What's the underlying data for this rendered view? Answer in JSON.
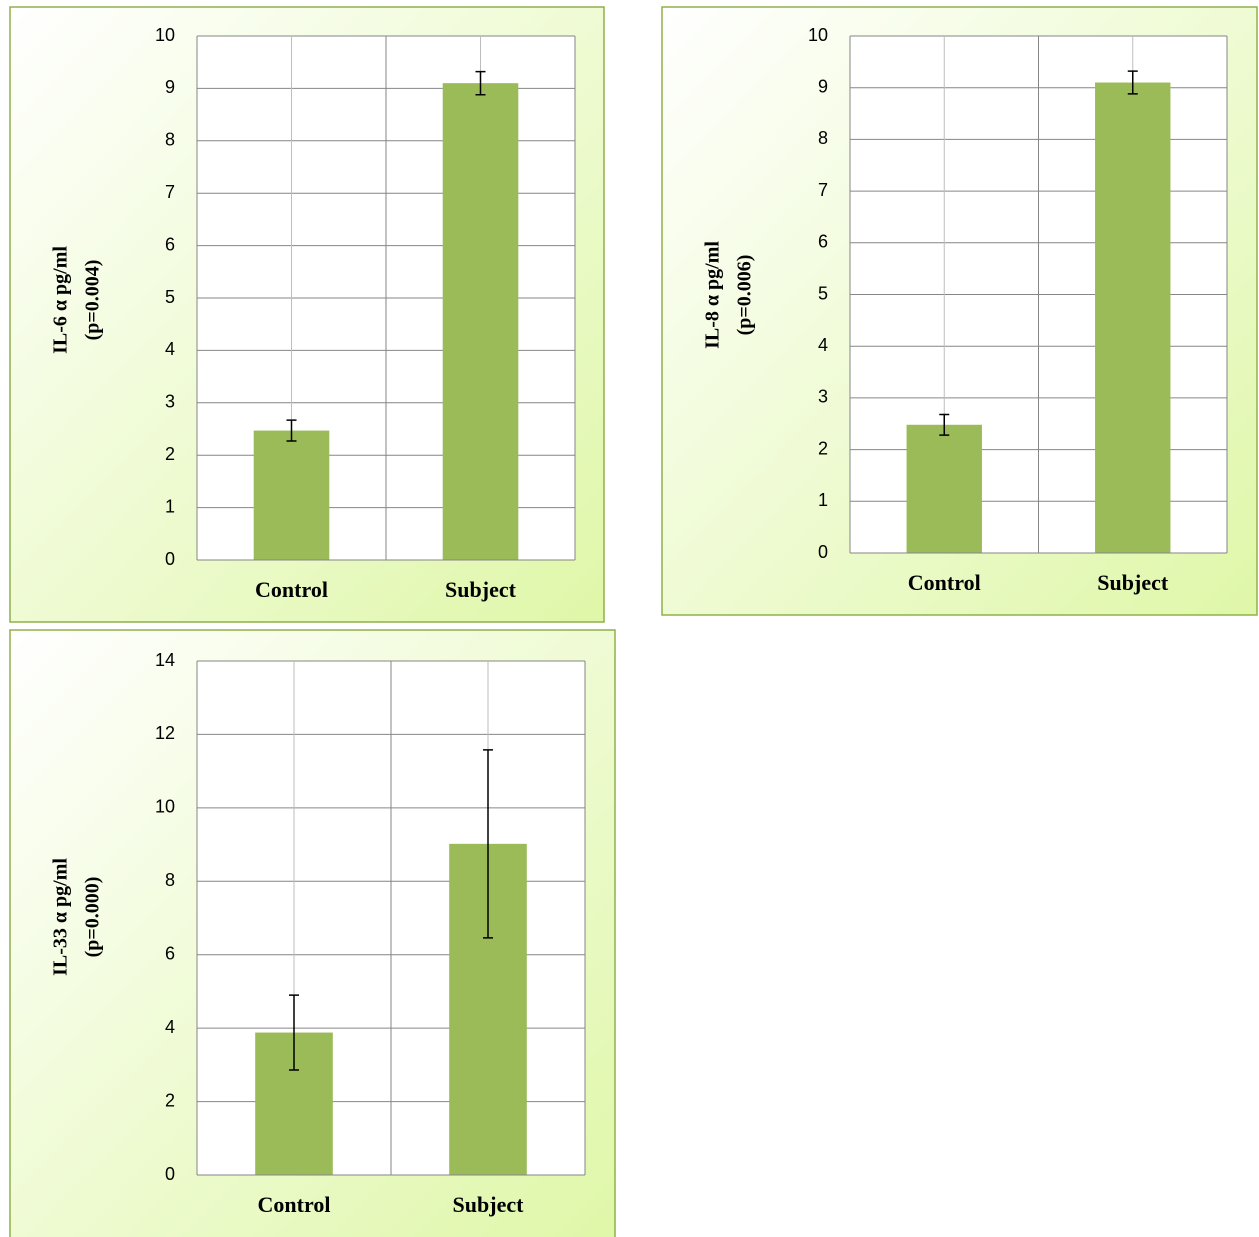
{
  "chart_data": [
    {
      "type": "bar",
      "y_label": [
        "IL-6 α pg/ml",
        "(p=0.004)"
      ],
      "categories": [
        "Control",
        "Subject"
      ],
      "values": [
        2.47,
        9.1
      ],
      "errors": [
        0.2,
        0.22
      ],
      "color": "#9bbb59",
      "ylim": [
        0,
        10
      ],
      "yticks": [
        0,
        1,
        2,
        3,
        4,
        5,
        6,
        7,
        8,
        9,
        10
      ],
      "grid": true
    },
    {
      "type": "bar",
      "y_label": [
        "IL-8 α pg/ml",
        "(p=0.006)"
      ],
      "categories": [
        "Control",
        "Subject"
      ],
      "values": [
        2.48,
        9.1
      ],
      "errors": [
        0.2,
        0.22
      ],
      "color": "#9bbb59",
      "ylim": [
        0,
        10
      ],
      "yticks": [
        0,
        1,
        2,
        3,
        4,
        5,
        6,
        7,
        8,
        9,
        10
      ],
      "grid": true
    },
    {
      "type": "bar",
      "y_label": [
        "IL-33 α pg/ml",
        "(p=0.000)"
      ],
      "categories": [
        "Control",
        "Subject"
      ],
      "values": [
        3.88,
        9.02
      ],
      "errors": [
        1.02,
        2.56
      ],
      "color": "#9bbb59",
      "ylim": [
        0,
        14
      ],
      "yticks": [
        0,
        2,
        4,
        6,
        8,
        10,
        12,
        14
      ],
      "grid": true
    }
  ]
}
